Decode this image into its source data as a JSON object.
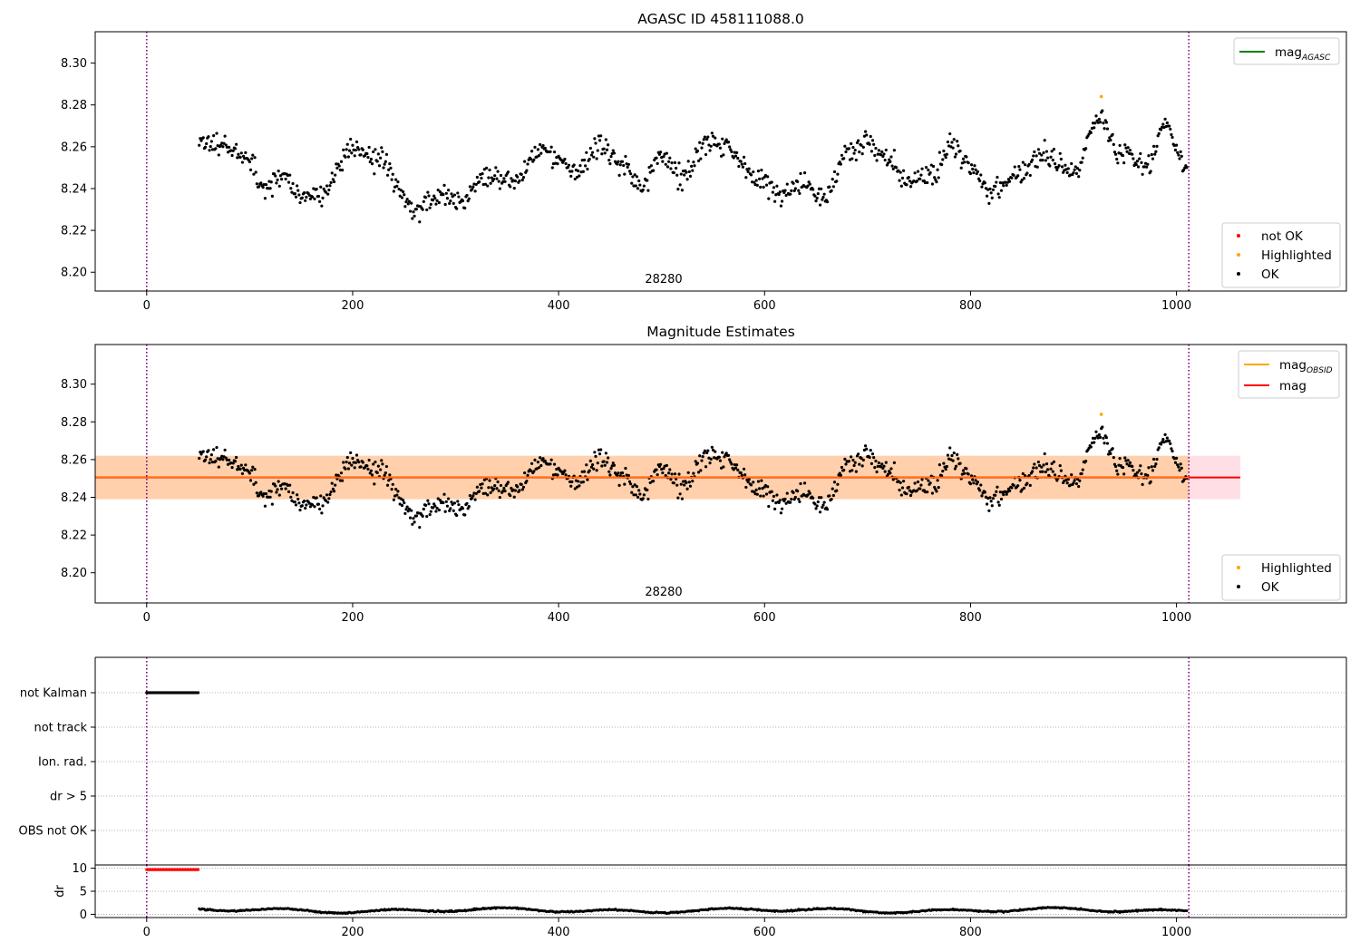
{
  "chart_data": [
    {
      "type": "scatter",
      "title": "AGASC ID 458111088.0",
      "xlim": [
        -50,
        1165
      ],
      "ylim": [
        8.191,
        8.315
      ],
      "xticks": [
        0,
        200,
        400,
        600,
        800,
        1000
      ],
      "yticks": [
        8.2,
        8.22,
        8.24,
        8.26,
        8.28,
        8.3
      ],
      "obsid_label": "28280",
      "vlines": [
        0,
        1012
      ],
      "legend_lines": [
        {
          "name": "mag",
          "sub": "AGASC",
          "color": "#008000"
        }
      ],
      "legend_points": [
        {
          "name": "not OK",
          "color": "#ff0000"
        },
        {
          "name": "Highlighted",
          "color": "#ffa500"
        },
        {
          "name": "OK",
          "color": "#000000"
        }
      ],
      "highlighted": [
        [
          927,
          8.284
        ]
      ]
    },
    {
      "type": "scatter",
      "title": "Magnitude Estimates",
      "xlim": [
        -50,
        1165
      ],
      "ylim": [
        8.184,
        8.321
      ],
      "xticks": [
        0,
        200,
        400,
        600,
        800,
        1000
      ],
      "yticks": [
        8.2,
        8.22,
        8.24,
        8.26,
        8.28,
        8.3
      ],
      "obsid_label": "28280",
      "vlines": [
        0,
        1012
      ],
      "mag_mean": 8.2505,
      "mag_band": [
        8.239,
        8.262
      ],
      "band_xrange": [
        -50,
        1062
      ],
      "legend_lines": [
        {
          "name": "mag",
          "sub": "OBSID",
          "color": "#ffa500"
        },
        {
          "name": "mag",
          "sub": "",
          "color": "#ff0000"
        }
      ],
      "legend_points": [
        {
          "name": "Highlighted",
          "color": "#ffa500"
        },
        {
          "name": "OK",
          "color": "#000000"
        }
      ],
      "highlighted": [
        [
          927,
          8.284
        ]
      ]
    },
    {
      "type": "scatter",
      "title": "",
      "xlim": [
        -50,
        1165
      ],
      "vlines": [
        0,
        1012
      ],
      "flag_labels": [
        "not Kalman",
        "not track",
        "Ion. rad.",
        "dr > 5",
        "OBS not OK"
      ],
      "not_kalman_xrange": [
        0,
        50
      ]
    },
    {
      "type": "scatter",
      "title": "",
      "xlim": [
        -50,
        1165
      ],
      "ylim": [
        -0.7,
        10.7
      ],
      "xticks": [
        0,
        200,
        400,
        600,
        800,
        1000
      ],
      "yticks": [
        0,
        5,
        10
      ],
      "ylabel": "dr",
      "vlines": [
        0,
        1012
      ],
      "not_ok_xrange": [
        0,
        50
      ],
      "not_ok_value": 9.7
    }
  ]
}
